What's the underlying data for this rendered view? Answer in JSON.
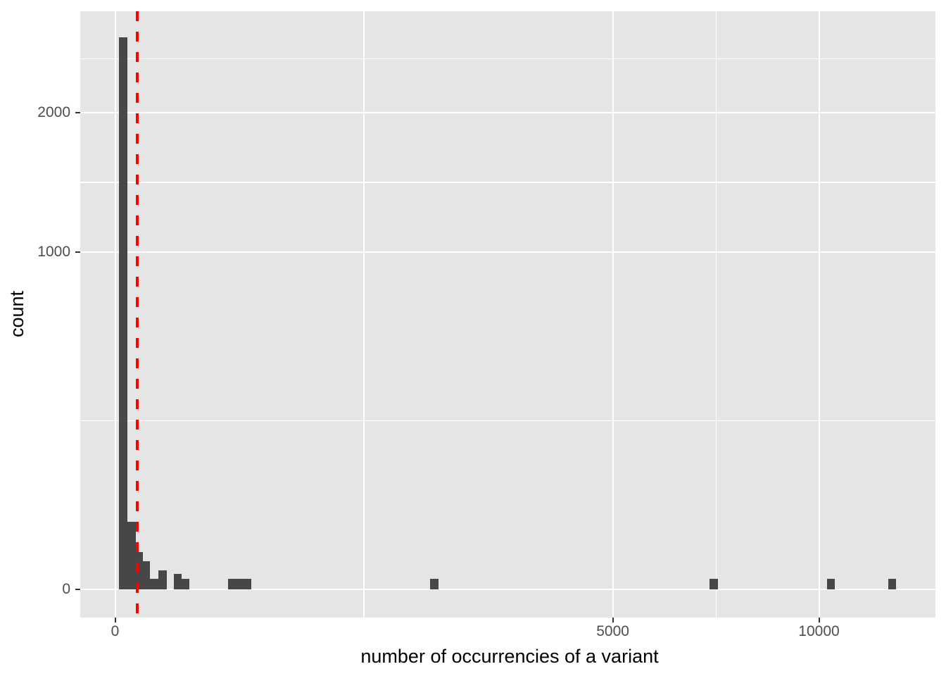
{
  "figure": {
    "background": "#ffffff",
    "panel_background": "#e5e5e5",
    "grid_color": "#ffffff",
    "bar_color": "#474747",
    "tick_mark_color": "#333333",
    "tick_label_color": "#4d4d4d",
    "axis_title_color": "#000000",
    "vline_color": "#ff0000"
  },
  "chart_data": {
    "type": "bar",
    "subtype": "histogram",
    "title": "",
    "xlabel": "number of occurrencies of a variant",
    "ylabel": "count",
    "x_scale": "sqrt",
    "y_scale": "sqrt",
    "x_ticks": [
      0,
      5000,
      10000
    ],
    "x_tick_labels": [
      "0",
      "5000",
      "10000"
    ],
    "y_ticks": [
      0,
      1000,
      2000
    ],
    "y_tick_labels": [
      "0",
      "1000",
      "2000"
    ],
    "x_minor_breaks": [
      1250,
      7287
    ],
    "y_minor_breaks": [
      250,
      1457,
      2475
    ],
    "x_display_range": [
      -24.5,
      13580
    ],
    "y_display_range": [
      0,
      2940
    ],
    "grid": true,
    "legend": "none",
    "vline": {
      "x": 10,
      "style": "dashed",
      "color": "#ff0000"
    },
    "bars": [
      {
        "x0": 0.3,
        "x1": 3.1,
        "count": 2680
      },
      {
        "x0": 3.1,
        "x1": 8.7,
        "count": 40
      },
      {
        "x0": 8.7,
        "x1": 15.6,
        "count": 12
      },
      {
        "x0": 15.6,
        "x1": 24.8,
        "count": 7
      },
      {
        "x0": 24.8,
        "x1": 38.2,
        "count": 1
      },
      {
        "x0": 38.2,
        "x1": 53.6,
        "count": 3
      },
      {
        "x0": 69.2,
        "x1": 89.3,
        "count": 2
      },
      {
        "x0": 89.3,
        "x1": 111.3,
        "count": 1
      },
      {
        "x0": 258,
        "x1": 373,
        "count": 1
      },
      {
        "x0": 2002,
        "x1": 2112,
        "count": 1
      },
      {
        "x0": 7132,
        "x1": 7336,
        "count": 1
      },
      {
        "x0": 10230,
        "x1": 10455,
        "count": 1
      },
      {
        "x0": 12067,
        "x1": 12310,
        "count": 1
      }
    ]
  }
}
